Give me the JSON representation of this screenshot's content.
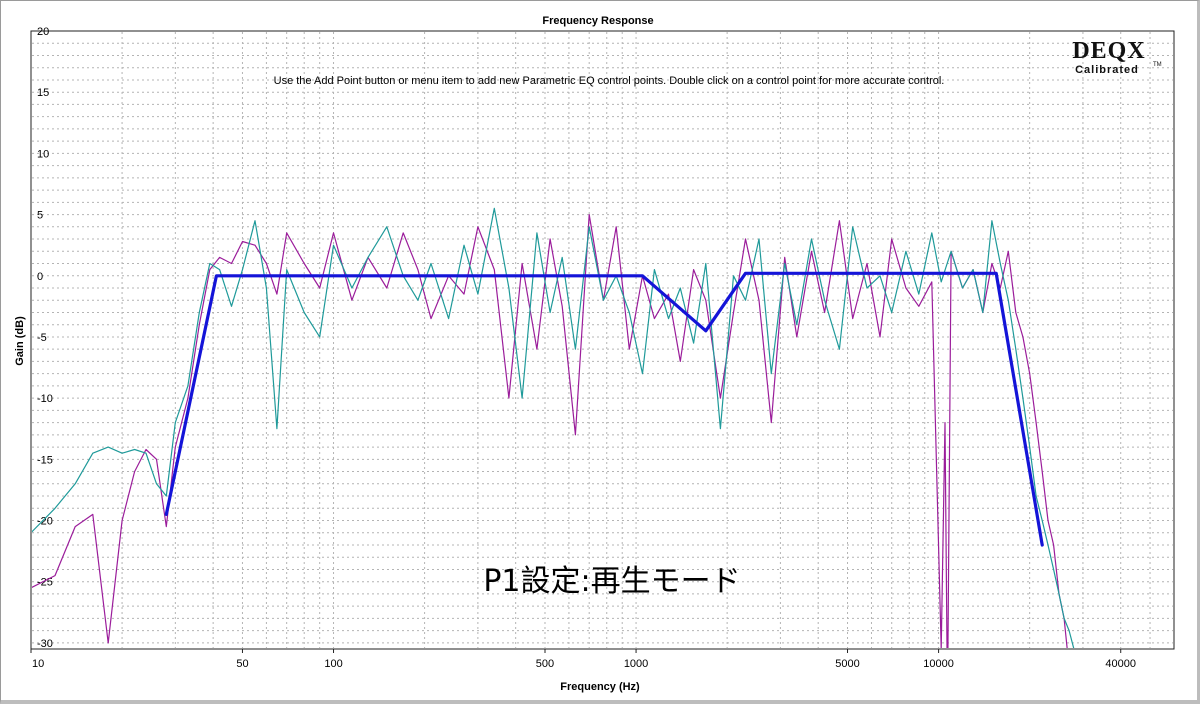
{
  "window": {
    "title": "Frequency Response",
    "hint": "Use the Add Point button or menu item to add new Parametric EQ control points.  Double click on a control point for more accurate control.",
    "overlay_text": "P1設定:再生モード"
  },
  "logo": {
    "name": "DEQX",
    "sub": "Calibrated",
    "tm": "TM"
  },
  "colors": {
    "trace_a": "#9b1d9b",
    "trace_b": "#1f9a9a",
    "target": "#1414d8",
    "grid": "#b4b4b4"
  },
  "chart_data": {
    "type": "line",
    "title": "Frequency Response",
    "xlabel": "Frequency (Hz)",
    "ylabel": "Gain (dB)",
    "x_scale": "log",
    "xlim": [
      10,
      60000
    ],
    "ylim": [
      -30.5,
      20
    ],
    "grid": true,
    "x_ticks": [
      10,
      50,
      100,
      500,
      1000,
      5000,
      10000,
      40000
    ],
    "x_tick_labels": [
      "10",
      "50",
      "100",
      "500",
      "1000",
      "5000",
      "10000",
      "40000"
    ],
    "y_ticks": [
      20,
      15,
      10,
      5,
      0,
      -5,
      -10,
      -15,
      -20,
      -25,
      -30
    ],
    "series": [
      {
        "color": "#1414d8",
        "x": [
          28,
          41,
          1050,
          1700,
          2300,
          15500,
          22000
        ],
        "y": [
          -19.5,
          0,
          0,
          -4.5,
          0.2,
          0.2,
          -22
        ]
      },
      {
        "color": "#9b1d9b",
        "x": [
          10,
          12,
          14,
          16,
          18,
          20,
          22,
          24,
          26,
          28,
          30,
          33,
          36,
          39,
          42,
          46,
          50,
          55,
          60,
          65,
          70,
          80,
          90,
          100,
          115,
          130,
          150,
          170,
          190,
          210,
          240,
          270,
          300,
          340,
          380,
          420,
          470,
          520,
          570,
          630,
          700,
          780,
          860,
          950,
          1050,
          1150,
          1280,
          1400,
          1550,
          1700,
          1900,
          2100,
          2300,
          2550,
          2800,
          3100,
          3400,
          3800,
          4200,
          4700,
          5200,
          5800,
          6400,
          7000,
          7800,
          8600,
          9500,
          10200,
          10500,
          10700,
          11000,
          12000,
          13000,
          14000,
          15000,
          16000,
          17000,
          18000,
          19000,
          20000,
          21000,
          22000,
          23000,
          24000,
          25000,
          26000,
          27000
        ],
        "y": [
          -25.5,
          -24.5,
          -20.5,
          -19.5,
          -30,
          -20,
          -16,
          -14.2,
          -15,
          -20.5,
          -14,
          -10,
          -4,
          0.5,
          1.5,
          1,
          2.8,
          2.5,
          1,
          -1.5,
          3.5,
          1,
          -1,
          3.5,
          -2,
          1.5,
          -1,
          3.5,
          0.5,
          -3.5,
          0,
          -1.5,
          4,
          0.5,
          -10,
          1,
          -6,
          3,
          -2.5,
          -13,
          5,
          -2,
          4,
          -6,
          0,
          -3.5,
          -1.5,
          -7,
          0.5,
          -2,
          -10,
          -3,
          3,
          -2,
          -12,
          1.5,
          -5,
          2,
          -3,
          4.5,
          -3.5,
          1,
          -5,
          3,
          -1,
          -2.5,
          -0.5,
          -30.5,
          -12,
          -35,
          2,
          -1,
          0.5,
          -3,
          1,
          -1,
          2,
          -3,
          -5,
          -8,
          -12,
          -16,
          -20,
          -22,
          -26,
          -28,
          -32
        ]
      },
      {
        "color": "#1f9a9a",
        "x": [
          10,
          12,
          14,
          16,
          18,
          20,
          22,
          24,
          26,
          28,
          30,
          33,
          36,
          39,
          42,
          46,
          50,
          55,
          60,
          65,
          70,
          80,
          90,
          100,
          115,
          130,
          150,
          170,
          190,
          210,
          240,
          270,
          300,
          340,
          380,
          420,
          470,
          520,
          570,
          630,
          700,
          780,
          860,
          950,
          1050,
          1150,
          1280,
          1400,
          1550,
          1700,
          1900,
          2100,
          2300,
          2550,
          2800,
          3100,
          3400,
          3800,
          4200,
          4700,
          5200,
          5800,
          6400,
          7000,
          7800,
          8600,
          9500,
          10200,
          11000,
          12000,
          13000,
          14000,
          15000,
          16000,
          17000,
          18000,
          19000,
          20000,
          21000,
          22000,
          23000,
          24000,
          25000,
          26000,
          27000,
          28000
        ],
        "y": [
          -21,
          -19,
          -17,
          -14.5,
          -14,
          -14.5,
          -14.2,
          -14.5,
          -17,
          -18,
          -12,
          -9,
          -3,
          1,
          0.5,
          -2.5,
          0.5,
          4.5,
          -1,
          -12.5,
          0.5,
          -3,
          -5,
          2.5,
          -1,
          1.5,
          4,
          0,
          -2,
          1,
          -3.5,
          2.5,
          -1.5,
          5.5,
          -1,
          -10,
          3.5,
          -3,
          1.5,
          -6,
          4,
          -2,
          0,
          -3,
          -8,
          0.5,
          -3.5,
          -1,
          -5.5,
          1,
          -12.5,
          0,
          -2,
          3,
          -8,
          1,
          -4,
          3,
          -2,
          -6,
          4,
          -1,
          0,
          -3,
          2,
          -1.5,
          3.5,
          -0.5,
          2,
          -1,
          0.5,
          -3,
          4.5,
          1,
          -2,
          -6,
          -10,
          -14,
          -18,
          -20,
          -22,
          -24,
          -26,
          -28,
          -29,
          -30.5
        ]
      }
    ]
  }
}
